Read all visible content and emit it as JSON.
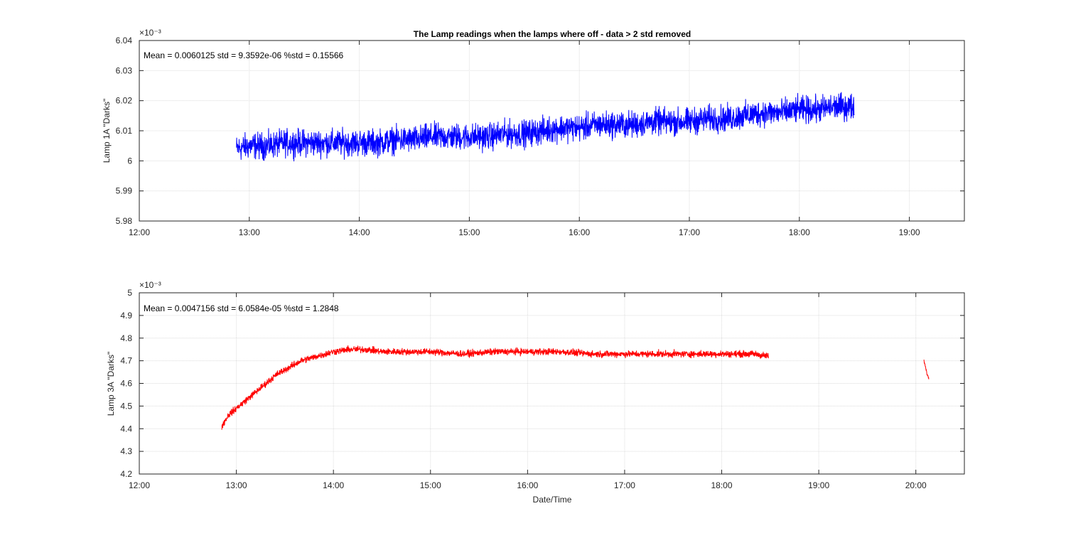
{
  "chart_data": [
    {
      "type": "line",
      "title": "The Lamp readings when the lamps where off - data > 2 std removed",
      "xlabel": "",
      "ylabel": "Lamp 1A \"Darks\"",
      "y_exponent": "×10⁻³",
      "annotation": "Mean = 0.0060125  std = 9.3592e-06  %std = 0.15566",
      "xlim_minutes": [
        720,
        1170
      ],
      "x_ticks": [
        "12:00",
        "13:00",
        "14:00",
        "15:00",
        "16:00",
        "17:00",
        "18:00",
        "19:00"
      ],
      "ylim": [
        5.98,
        6.04
      ],
      "y_ticks": [
        "5.98",
        "5.99",
        "6",
        "6.01",
        "6.02",
        "6.03",
        "6.04"
      ],
      "grid": true,
      "color": "#0000ff",
      "series": [
        {
          "noise": 0.0065,
          "points": [
            [
              "12:53",
              6.004
            ],
            [
              "13:00",
              6.005
            ],
            [
              "13:10",
              6.005
            ],
            [
              "13:20",
              6.006
            ],
            [
              "13:30",
              6.006
            ],
            [
              "13:40",
              6.006
            ],
            [
              "13:50",
              6.006
            ],
            [
              "14:00",
              6.006
            ],
            [
              "14:10",
              6.006
            ],
            [
              "14:20",
              6.007
            ],
            [
              "14:30",
              6.007
            ],
            [
              "14:40",
              6.008
            ],
            [
              "14:50",
              6.008
            ],
            [
              "15:00",
              6.008
            ],
            [
              "15:10",
              6.008
            ],
            [
              "15:20",
              6.009
            ],
            [
              "15:30",
              6.009
            ],
            [
              "15:40",
              6.01
            ],
            [
              "15:50",
              6.011
            ],
            [
              "16:00",
              6.011
            ],
            [
              "16:10",
              6.012
            ],
            [
              "16:20",
              6.012
            ],
            [
              "16:30",
              6.012
            ],
            [
              "16:40",
              6.013
            ],
            [
              "16:50",
              6.013
            ],
            [
              "17:00",
              6.013
            ],
            [
              "17:10",
              6.014
            ],
            [
              "17:20",
              6.014
            ],
            [
              "17:30",
              6.015
            ],
            [
              "17:40",
              6.016
            ],
            [
              "17:50",
              6.016
            ],
            [
              "18:00",
              6.017
            ],
            [
              "18:10",
              6.017
            ],
            [
              "18:20",
              6.018
            ],
            [
              "18:30",
              6.018
            ]
          ]
        }
      ]
    },
    {
      "type": "line",
      "title": "",
      "xlabel": "Date/Time",
      "ylabel": "Lamp 3A \"Darks\"",
      "y_exponent": "×10⁻³",
      "annotation": "Mean = 0.0047156  std = 6.0584e-05  %std = 1.2848",
      "xlim_minutes": [
        720,
        1230
      ],
      "x_ticks": [
        "12:00",
        "13:00",
        "14:00",
        "15:00",
        "16:00",
        "17:00",
        "18:00",
        "19:00",
        "20:00"
      ],
      "ylim": [
        4.2,
        5.0
      ],
      "y_ticks": [
        "4.2",
        "4.3",
        "4.4",
        "4.5",
        "4.6",
        "4.7",
        "4.8",
        "4.9",
        "5"
      ],
      "grid": true,
      "color": "#ff0000",
      "series": [
        {
          "noise": 0.022,
          "points": [
            [
              "12:51",
              4.41
            ],
            [
              "12:55",
              4.46
            ],
            [
              "13:00",
              4.49
            ],
            [
              "13:05",
              4.52
            ],
            [
              "13:10",
              4.55
            ],
            [
              "13:15",
              4.58
            ],
            [
              "13:20",
              4.61
            ],
            [
              "13:25",
              4.64
            ],
            [
              "13:30",
              4.66
            ],
            [
              "13:35",
              4.68
            ],
            [
              "13:40",
              4.7
            ],
            [
              "13:45",
              4.71
            ],
            [
              "13:50",
              4.72
            ],
            [
              "13:55",
              4.73
            ],
            [
              "14:00",
              4.74
            ],
            [
              "14:10",
              4.75
            ],
            [
              "14:20",
              4.75
            ],
            [
              "14:30",
              4.74
            ],
            [
              "14:45",
              4.74
            ],
            [
              "15:00",
              4.74
            ],
            [
              "15:20",
              4.73
            ],
            [
              "15:40",
              4.74
            ],
            [
              "16:00",
              4.74
            ],
            [
              "16:20",
              4.74
            ],
            [
              "16:40",
              4.73
            ],
            [
              "17:00",
              4.73
            ],
            [
              "17:20",
              4.73
            ],
            [
              "17:40",
              4.73
            ],
            [
              "18:00",
              4.73
            ],
            [
              "18:20",
              4.73
            ],
            [
              "18:29",
              4.72
            ]
          ]
        },
        {
          "noise": 0.01,
          "points": [
            [
              "20:05",
              4.7
            ],
            [
              "20:06",
              4.67
            ],
            [
              "20:07",
              4.64
            ],
            [
              "20:08",
              4.62
            ]
          ]
        }
      ]
    }
  ]
}
